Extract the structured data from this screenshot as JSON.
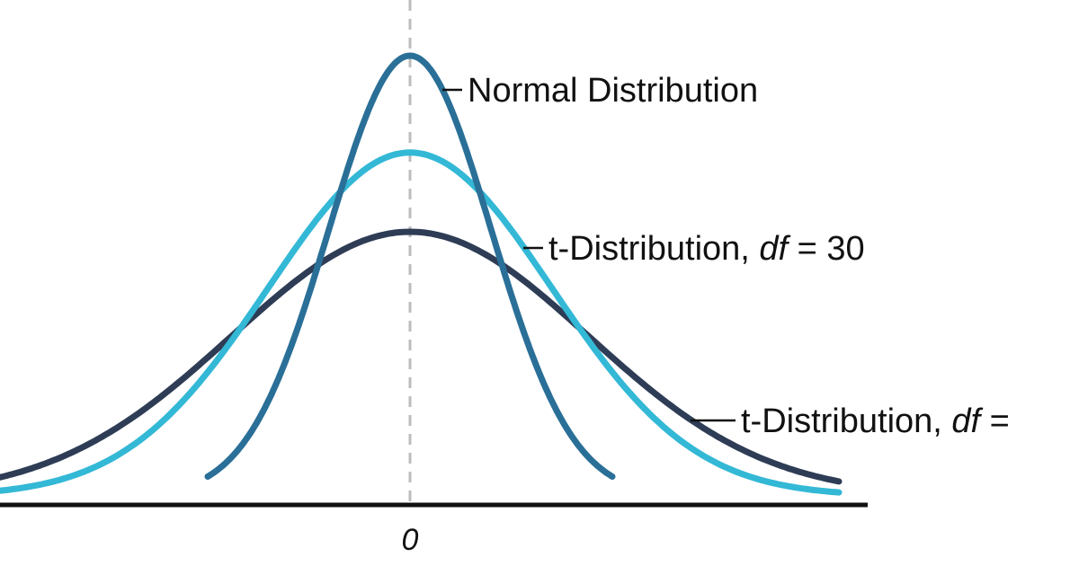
{
  "chart_data": {
    "type": "line",
    "title": "",
    "xlabel": "",
    "ylabel": "",
    "x_ticks": [
      "0"
    ],
    "grid": false,
    "center_line": true,
    "colors": {
      "axis": "#111111",
      "center_line": "#bdbdbd",
      "normal": "#2a6f97",
      "t30": "#33b8d6",
      "tlow": "#2e3d55"
    },
    "series": [
      {
        "key": "normal",
        "label_prefix": "Normal Distribution",
        "label_df": "",
        "label_value": "",
        "peak": 1.0,
        "spread": 1.0,
        "x_range": [
          -2.5,
          2.5
        ]
      },
      {
        "key": "t30",
        "label_prefix": "t-Distribution, ",
        "label_df": "df",
        "label_value": " = 30",
        "peak": 0.78,
        "spread": 1.75,
        "x_range": [
          -5.3,
          5.3
        ]
      },
      {
        "key": "tlow",
        "label_prefix": "t-Distribution, ",
        "label_df": "df",
        "label_value": " =",
        "peak": 0.6,
        "spread": 2.2,
        "x_range": [
          -5.3,
          5.3
        ]
      }
    ]
  }
}
